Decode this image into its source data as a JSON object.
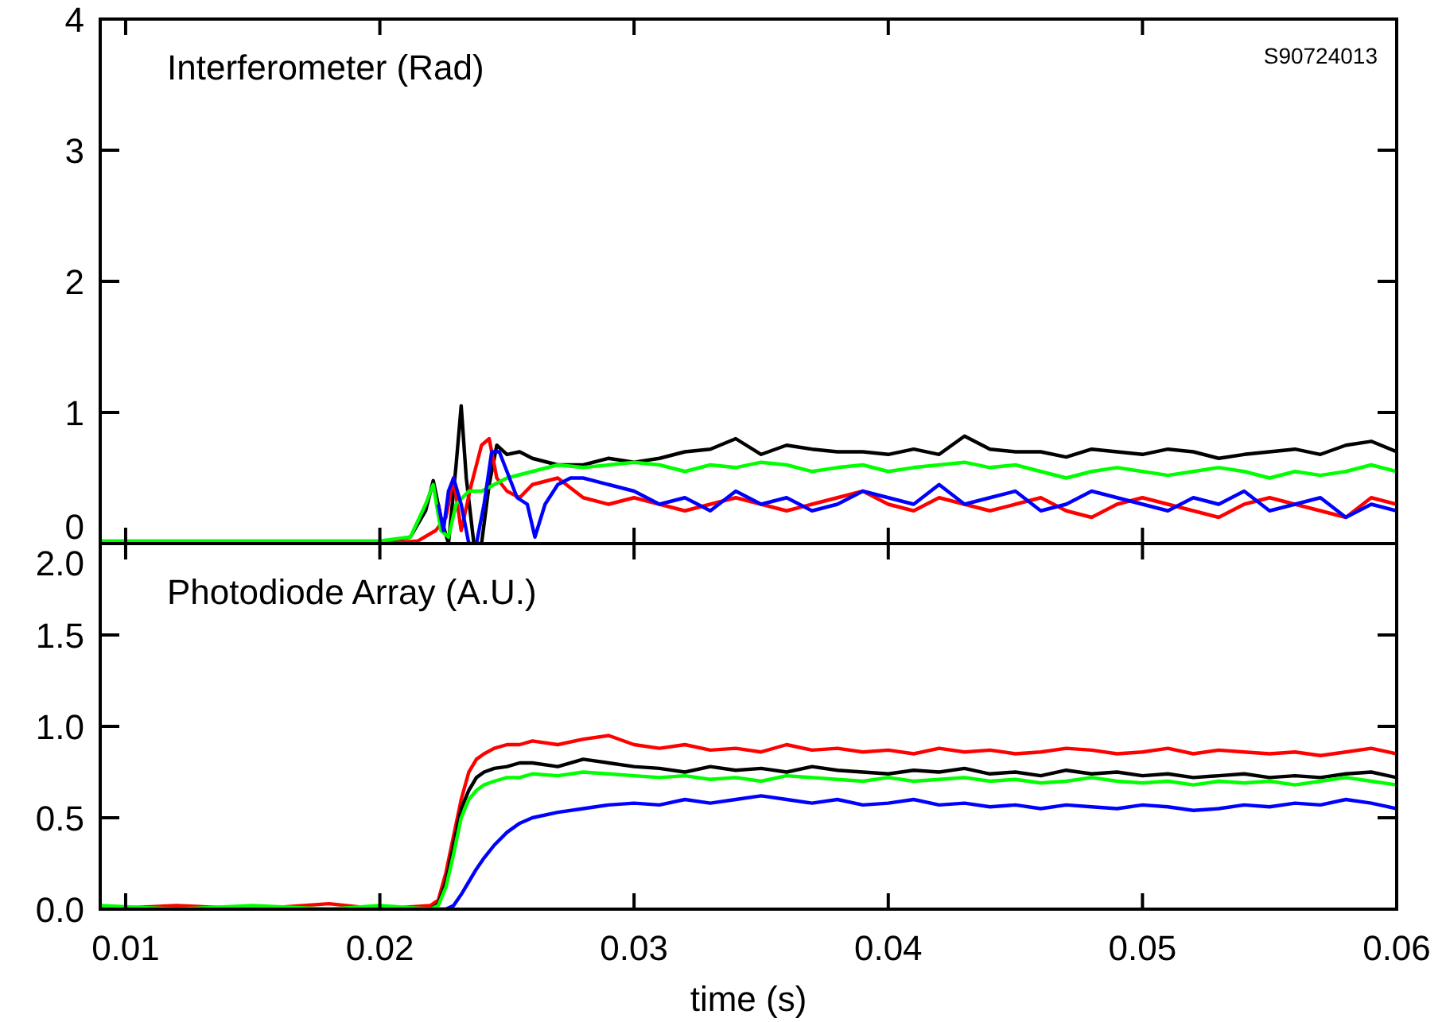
{
  "chart_data": [
    {
      "type": "line",
      "title": "Interferometer (Rad)",
      "annotations": [
        "S90724013"
      ],
      "xlim": [
        0.009,
        0.06
      ],
      "xticks": [
        0.01,
        0.02,
        0.03,
        0.04,
        0.05,
        0.06
      ],
      "ylim": [
        0,
        4
      ],
      "yticks": [
        0,
        1,
        2,
        3,
        4
      ],
      "tick_labels": "y",
      "grid": false,
      "series": [
        {
          "color": "#000000",
          "x": [
            0.009,
            0.015,
            0.02,
            0.0212,
            0.0218,
            0.0221,
            0.0224,
            0.0227,
            0.023,
            0.0232,
            0.0234,
            0.0237,
            0.024,
            0.0243,
            0.0246,
            0.025,
            0.0255,
            0.026,
            0.027,
            0.028,
            0.029,
            0.03,
            0.031,
            0.032,
            0.033,
            0.034,
            0.035,
            0.036,
            0.037,
            0.038,
            0.039,
            0.04,
            0.041,
            0.042,
            0.043,
            0.044,
            0.045,
            0.046,
            0.047,
            0.048,
            0.049,
            0.05,
            0.051,
            0.052,
            0.053,
            0.054,
            0.055,
            0.056,
            0.057,
            0.058,
            0.059,
            0.06
          ],
          "values": [
            0,
            0,
            0,
            0.05,
            0.25,
            0.48,
            0.2,
            0,
            0.6,
            1.05,
            0.5,
            0,
            0,
            0.45,
            0.75,
            0.68,
            0.7,
            0.65,
            0.6,
            0.6,
            0.65,
            0.62,
            0.65,
            0.7,
            0.72,
            0.8,
            0.68,
            0.75,
            0.72,
            0.7,
            0.7,
            0.68,
            0.72,
            0.68,
            0.82,
            0.72,
            0.7,
            0.7,
            0.66,
            0.72,
            0.7,
            0.68,
            0.72,
            0.7,
            0.65,
            0.68,
            0.7,
            0.72,
            0.68,
            0.75,
            0.78,
            0.7
          ]
        },
        {
          "color": "#ff0000",
          "x": [
            0.009,
            0.015,
            0.02,
            0.0215,
            0.0222,
            0.0226,
            0.0229,
            0.0232,
            0.0236,
            0.024,
            0.0243,
            0.0246,
            0.025,
            0.0255,
            0.026,
            0.027,
            0.028,
            0.029,
            0.03,
            0.031,
            0.032,
            0.033,
            0.034,
            0.035,
            0.036,
            0.037,
            0.038,
            0.039,
            0.04,
            0.041,
            0.042,
            0.043,
            0.044,
            0.045,
            0.046,
            0.047,
            0.048,
            0.049,
            0.05,
            0.051,
            0.052,
            0.053,
            0.054,
            0.055,
            0.056,
            0.057,
            0.058,
            0.059,
            0.06
          ],
          "values": [
            0,
            0,
            0,
            0.02,
            0.1,
            0.2,
            0.5,
            0.1,
            0.45,
            0.75,
            0.8,
            0.5,
            0.4,
            0.35,
            0.45,
            0.5,
            0.35,
            0.3,
            0.35,
            0.3,
            0.25,
            0.3,
            0.35,
            0.3,
            0.25,
            0.3,
            0.35,
            0.4,
            0.3,
            0.25,
            0.35,
            0.3,
            0.25,
            0.3,
            0.35,
            0.25,
            0.2,
            0.3,
            0.35,
            0.3,
            0.25,
            0.2,
            0.3,
            0.35,
            0.3,
            0.25,
            0.2,
            0.35,
            0.3
          ]
        },
        {
          "color": "#00ff00",
          "x": [
            0.009,
            0.015,
            0.02,
            0.0212,
            0.0218,
            0.0221,
            0.0224,
            0.0227,
            0.023,
            0.0235,
            0.024,
            0.0245,
            0.025,
            0.026,
            0.027,
            0.028,
            0.029,
            0.03,
            0.031,
            0.032,
            0.033,
            0.034,
            0.035,
            0.036,
            0.037,
            0.038,
            0.039,
            0.04,
            0.041,
            0.042,
            0.043,
            0.044,
            0.045,
            0.046,
            0.047,
            0.048,
            0.049,
            0.05,
            0.051,
            0.052,
            0.053,
            0.054,
            0.055,
            0.056,
            0.057,
            0.058,
            0.059,
            0.06
          ],
          "values": [
            0.02,
            0.02,
            0.02,
            0.05,
            0.3,
            0.45,
            0.1,
            0.05,
            0.3,
            0.4,
            0.4,
            0.45,
            0.5,
            0.55,
            0.6,
            0.58,
            0.6,
            0.62,
            0.6,
            0.55,
            0.6,
            0.58,
            0.62,
            0.6,
            0.55,
            0.58,
            0.6,
            0.55,
            0.58,
            0.6,
            0.62,
            0.58,
            0.6,
            0.55,
            0.5,
            0.55,
            0.58,
            0.55,
            0.52,
            0.55,
            0.58,
            0.55,
            0.5,
            0.55,
            0.52,
            0.55,
            0.6,
            0.55
          ]
        },
        {
          "color": "#0000ff",
          "x": [
            0.0223,
            0.0225,
            0.0227,
            0.0229,
            0.0232,
            0.0235,
            0.0238,
            0.0241,
            0.0244,
            0.0247,
            0.025,
            0.0254,
            0.0258,
            0.0261,
            0.0265,
            0.027,
            0.0275,
            0.028,
            0.029,
            0.03,
            0.031,
            0.032,
            0.033,
            0.034,
            0.035,
            0.036,
            0.037,
            0.038,
            0.039,
            0.04,
            0.041,
            0.042,
            0.043,
            0.044,
            0.045,
            0.046,
            0.047,
            0.048,
            0.049,
            0.05,
            0.051,
            0.052,
            0.053,
            0.054,
            0.055,
            0.056,
            0.057,
            0.058,
            0.059,
            0.06
          ],
          "values": [
            0.3,
            0.1,
            0.4,
            0.5,
            0.3,
            0,
            0,
            0.3,
            0.7,
            0.7,
            0.55,
            0.35,
            0.3,
            0.05,
            0.3,
            0.45,
            0.5,
            0.5,
            0.45,
            0.4,
            0.3,
            0.35,
            0.25,
            0.4,
            0.3,
            0.35,
            0.25,
            0.3,
            0.4,
            0.35,
            0.3,
            0.45,
            0.3,
            0.35,
            0.4,
            0.25,
            0.3,
            0.4,
            0.35,
            0.3,
            0.25,
            0.35,
            0.3,
            0.4,
            0.25,
            0.3,
            0.35,
            0.2,
            0.3,
            0.25
          ]
        }
      ]
    },
    {
      "type": "line",
      "title": "Photodiode Array (A.U.)",
      "xlabel": "time (s)",
      "xlim": [
        0.009,
        0.06
      ],
      "xticks": [
        0.01,
        0.02,
        0.03,
        0.04,
        0.05,
        0.06
      ],
      "ylim": [
        0,
        2
      ],
      "yticks": [
        {
          "value": 0,
          "label": "0.0"
        },
        0.5,
        {
          "value": 1,
          "label": "1.0"
        },
        1.5,
        {
          "value": 2,
          "label": "2.0"
        }
      ],
      "grid": false,
      "x": [
        0.009,
        0.012,
        0.015,
        0.018,
        0.02,
        0.022,
        0.0223,
        0.0226,
        0.0229,
        0.0232,
        0.0235,
        0.0238,
        0.0241,
        0.0245,
        0.025,
        0.0255,
        0.026,
        0.027,
        0.028,
        0.029,
        0.03,
        0.031,
        0.032,
        0.033,
        0.034,
        0.035,
        0.036,
        0.037,
        0.038,
        0.039,
        0.04,
        0.041,
        0.042,
        0.043,
        0.044,
        0.045,
        0.046,
        0.047,
        0.048,
        0.049,
        0.05,
        0.051,
        0.052,
        0.053,
        0.054,
        0.055,
        0.056,
        0.057,
        0.058,
        0.059,
        0.06
      ],
      "series": [
        {
          "color": "#ff0000",
          "values": [
            0,
            0.02,
            0,
            0.03,
            0,
            0.02,
            0.05,
            0.2,
            0.4,
            0.6,
            0.75,
            0.82,
            0.85,
            0.88,
            0.9,
            0.9,
            0.92,
            0.9,
            0.93,
            0.95,
            0.9,
            0.88,
            0.9,
            0.87,
            0.88,
            0.86,
            0.9,
            0.87,
            0.88,
            0.86,
            0.87,
            0.85,
            0.88,
            0.86,
            0.87,
            0.85,
            0.86,
            0.88,
            0.87,
            0.85,
            0.86,
            0.88,
            0.85,
            0.87,
            0.86,
            0.85,
            0.86,
            0.84,
            0.86,
            0.88,
            0.85
          ]
        },
        {
          "color": "#000000",
          "values": [
            0,
            0,
            0,
            0,
            0,
            0,
            0.03,
            0.15,
            0.35,
            0.55,
            0.65,
            0.72,
            0.75,
            0.77,
            0.78,
            0.8,
            0.8,
            0.78,
            0.82,
            0.8,
            0.78,
            0.77,
            0.75,
            0.78,
            0.76,
            0.77,
            0.75,
            0.78,
            0.76,
            0.75,
            0.74,
            0.76,
            0.75,
            0.77,
            0.74,
            0.75,
            0.73,
            0.76,
            0.74,
            0.75,
            0.73,
            0.74,
            0.72,
            0.73,
            0.74,
            0.72,
            0.73,
            0.72,
            0.74,
            0.75,
            0.72
          ]
        },
        {
          "color": "#00ff00",
          "values": [
            0.02,
            0,
            0.02,
            0,
            0.02,
            0,
            0.02,
            0.12,
            0.3,
            0.5,
            0.6,
            0.65,
            0.68,
            0.7,
            0.72,
            0.72,
            0.74,
            0.73,
            0.75,
            0.74,
            0.73,
            0.72,
            0.73,
            0.71,
            0.72,
            0.7,
            0.73,
            0.72,
            0.71,
            0.7,
            0.72,
            0.7,
            0.71,
            0.72,
            0.7,
            0.71,
            0.69,
            0.7,
            0.72,
            0.7,
            0.69,
            0.7,
            0.68,
            0.7,
            0.69,
            0.7,
            0.68,
            0.7,
            0.72,
            0.7,
            0.68
          ]
        },
        {
          "color": "#0000ff",
          "values": [
            null,
            null,
            null,
            null,
            null,
            null,
            0,
            0,
            0.02,
            0.08,
            0.15,
            0.22,
            0.28,
            0.35,
            0.42,
            0.47,
            0.5,
            0.53,
            0.55,
            0.57,
            0.58,
            0.57,
            0.6,
            0.58,
            0.6,
            0.62,
            0.6,
            0.58,
            0.6,
            0.57,
            0.58,
            0.6,
            0.57,
            0.58,
            0.56,
            0.57,
            0.55,
            0.57,
            0.56,
            0.55,
            0.57,
            0.56,
            0.54,
            0.55,
            0.57,
            0.56,
            0.58,
            0.57,
            0.6,
            0.58,
            0.55
          ]
        }
      ]
    }
  ]
}
